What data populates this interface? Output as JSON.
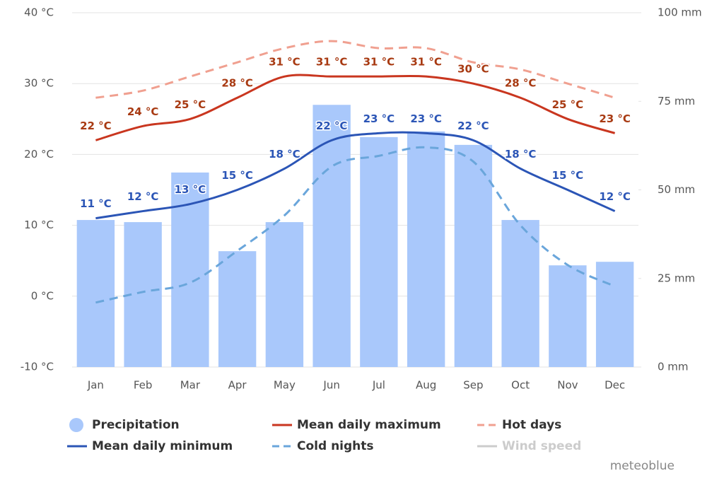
{
  "chart_data": {
    "type": "combo",
    "categories": [
      "Jan",
      "Feb",
      "Mar",
      "Apr",
      "May",
      "Jun",
      "Jul",
      "Aug",
      "Sep",
      "Oct",
      "Nov",
      "Dec"
    ],
    "ylim": [
      -10,
      40
    ],
    "yticks": [
      {
        "value": -10,
        "label": "-10 °C"
      },
      {
        "value": 0,
        "label": "0 °C"
      },
      {
        "value": 10,
        "label": "10 °C"
      },
      {
        "value": 20,
        "label": "20 °C"
      },
      {
        "value": 30,
        "label": "30 °C"
      },
      {
        "value": 40,
        "label": "40 °C"
      }
    ],
    "y2lim": [
      0,
      100
    ],
    "y2ticks": [
      {
        "value": 0,
        "label": "0 mm"
      },
      {
        "value": 25,
        "label": "25 mm"
      },
      {
        "value": 50,
        "label": "50 mm"
      },
      {
        "value": 75,
        "label": "75 mm"
      },
      {
        "value": 100,
        "label": "100 mm"
      }
    ],
    "grid": true,
    "series": [
      {
        "name": "Precipitation",
        "type": "bar",
        "axis": "y2",
        "color": "#a9c8fb",
        "values": [
          41.5,
          40.9,
          54.9,
          32.7,
          40.9,
          74,
          64.9,
          66.5,
          62.7,
          41.5,
          28.7,
          29.7
        ]
      },
      {
        "name": "Mean daily maximum",
        "type": "line",
        "color": "#c9361f",
        "label_color": "#a83a12",
        "values": [
          22,
          24,
          25,
          28,
          31,
          31,
          31,
          31,
          30,
          28,
          25,
          23
        ],
        "value_labels": [
          "22 °C",
          "24 °C",
          "25 °C",
          "28 °C",
          "31 °C",
          "31 °C",
          "31 °C",
          "31 °C",
          "30 °C",
          "28 °C",
          "25 °C",
          "23 °C"
        ]
      },
      {
        "name": "Hot days",
        "type": "line",
        "dashed": true,
        "color": "#f0a090",
        "values": [
          28,
          29,
          31,
          33,
          35,
          36,
          35,
          35,
          33,
          32,
          30,
          28
        ]
      },
      {
        "name": "Mean daily minimum",
        "type": "line",
        "color": "#2b55b6",
        "label_color": "#2b55b6",
        "values": [
          11,
          12,
          13,
          15,
          18,
          22,
          23,
          23,
          22,
          18,
          15,
          12
        ],
        "value_labels": [
          "11 °C",
          "12 °C",
          "13 °C",
          "15 °C",
          "18 °C",
          "22 °C",
          "23 °C",
          "23 °C",
          "22 °C",
          "18 °C",
          "15 °C",
          "12 °C"
        ]
      },
      {
        "name": "Cold nights",
        "type": "line",
        "dashed": true,
        "color": "#6aa6db",
        "values": [
          -0.9,
          0.6,
          1.9,
          6.4,
          11.4,
          18.3,
          19.8,
          21,
          19,
          10,
          4.4,
          1.4
        ]
      },
      {
        "name": "Wind speed",
        "type": "line",
        "hidden": true,
        "color": "#cccccc",
        "values": [
          null,
          null,
          null,
          null,
          null,
          null,
          null,
          null,
          null,
          null,
          null,
          null
        ]
      }
    ],
    "watermark": "meteoblue"
  }
}
